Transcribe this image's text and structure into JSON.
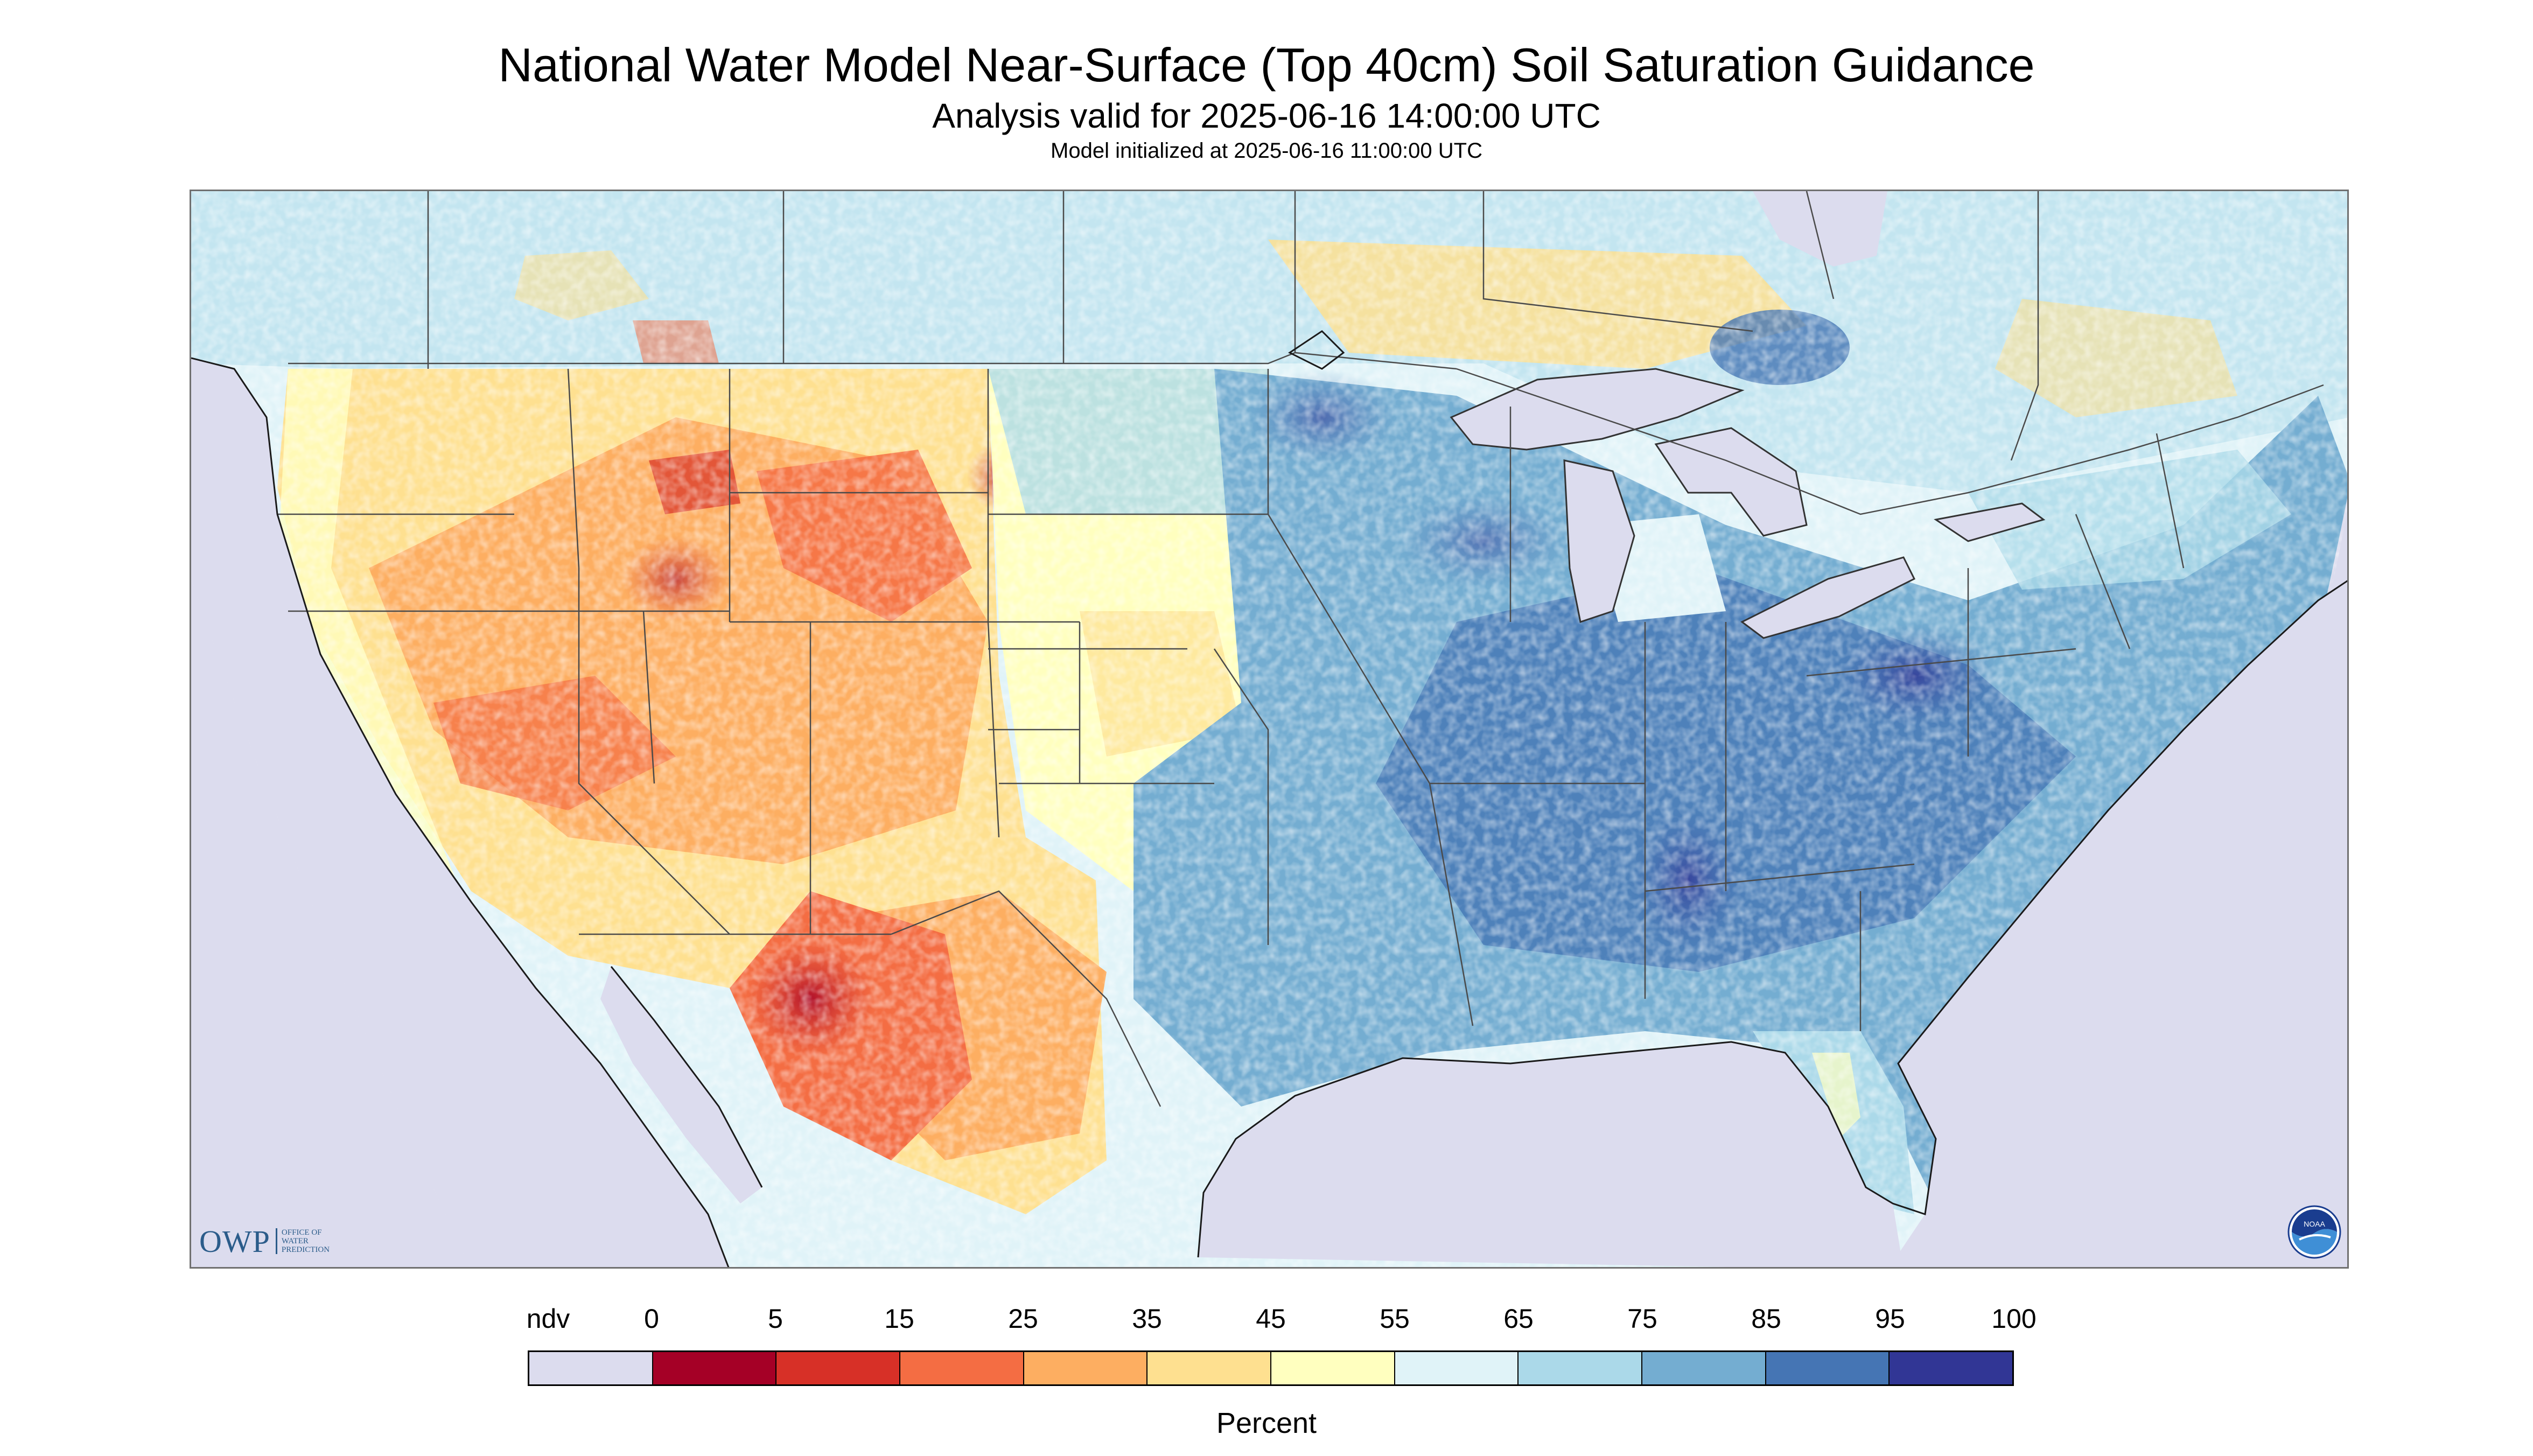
{
  "header": {
    "title": "National Water Model Near-Surface (Top 40cm) Soil Saturation Guidance",
    "subtitle": "Analysis valid for 2025-06-16 14:00:00 UTC",
    "init": "Model initialized at 2025-06-16 11:00:00 UTC"
  },
  "logos": {
    "owp_letters": "OWP",
    "owp_lines": [
      "OFFICE OF",
      "WATER",
      "PREDICTION"
    ],
    "noaa_text": "NOAA",
    "noaa_icon": "noaa-seal-icon"
  },
  "legend": {
    "labels": [
      "ndv",
      "0",
      "5",
      "15",
      "25",
      "35",
      "45",
      "55",
      "65",
      "75",
      "85",
      "95",
      "100"
    ],
    "colors": [
      "#dcdcee",
      "#a50026",
      "#d73027",
      "#f46d43",
      "#fdae61",
      "#fee090",
      "#ffffbf",
      "#e0f3f8",
      "#abd9e9",
      "#74add1",
      "#4575b4",
      "#313695"
    ],
    "unit": "Percent"
  },
  "map_colors": {
    "nodata": "#dcdcee",
    "lakes": "#dcdcee",
    "borders": "#4a4a4a"
  }
}
